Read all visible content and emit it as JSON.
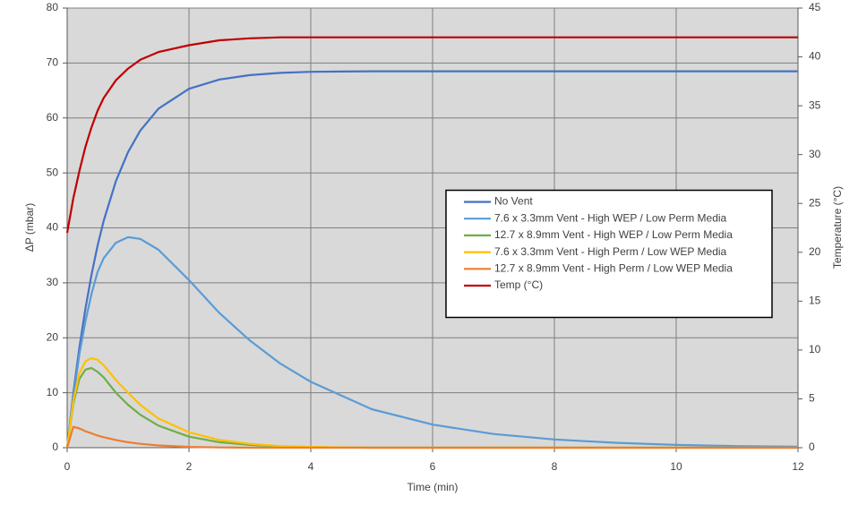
{
  "chart_data": {
    "type": "line",
    "x_label": "Time (min)",
    "y_label": "ΔP (mbar)",
    "y2_label": "Temperature (°C)",
    "x": [
      0,
      0.1,
      0.2,
      0.3,
      0.4,
      0.5,
      0.6,
      0.8,
      1,
      1.2,
      1.5,
      2,
      2.5,
      3,
      3.5,
      4,
      5,
      6,
      7,
      8,
      9,
      10,
      11,
      12
    ],
    "series": [
      {
        "name": "No Vent",
        "color": "#4472c4",
        "values": [
          0,
          9.8,
          18.2,
          25.3,
          31.5,
          36.8,
          41.3,
          48.5,
          53.8,
          57.7,
          61.7,
          65.3,
          67.0,
          67.8,
          68.2,
          68.4,
          68.5,
          68.5,
          68.5,
          68.5,
          68.5,
          68.5,
          68.5,
          68.5
        ]
      },
      {
        "name": "7.6 x 3.3mm Vent - High WEP / Low Perm Media",
        "color": "#5b9bd5",
        "values": [
          0,
          9,
          17,
          23,
          28,
          32,
          34.5,
          37.3,
          38.3,
          38,
          36,
          30.5,
          24.5,
          19.5,
          15.3,
          12,
          7,
          4.2,
          2.5,
          1.5,
          0.9,
          0.5,
          0.3,
          0.2
        ]
      },
      {
        "name": "12.7 x 8.9mm Vent - High WEP / Low Perm Media",
        "color": "#70ad47",
        "values": [
          0,
          8,
          12.5,
          14.2,
          14.5,
          13.8,
          12.8,
          10,
          7.8,
          6,
          4,
          2,
          1,
          0.5,
          0.25,
          0.1,
          0,
          0,
          0,
          0,
          0,
          0,
          0,
          0
        ]
      },
      {
        "name": "7.6 x 3.3mm Vent - High Perm / Low WEP Media",
        "color": "#ffc000",
        "values": [
          0,
          8.5,
          13.5,
          15.7,
          16.3,
          16,
          15,
          12.3,
          10,
          7.8,
          5.3,
          2.8,
          1.4,
          0.7,
          0.3,
          0.15,
          0,
          0,
          0,
          0,
          0,
          0,
          0,
          0
        ]
      },
      {
        "name": "12.7 x 8.9mm Vent - High Perm / Low WEP Media",
        "color": "#ed7d31",
        "values": [
          0,
          3.8,
          3.5,
          3,
          2.6,
          2.2,
          1.9,
          1.4,
          1,
          0.7,
          0.4,
          0.15,
          0.05,
          0,
          0,
          0,
          0,
          0,
          0,
          0,
          0,
          0,
          0,
          0
        ]
      },
      {
        "name": "Temp (°C)",
        "color": "#c00000",
        "axis": "y2",
        "values": [
          22,
          25.5,
          28.3,
          30.8,
          32.8,
          34.5,
          35.8,
          37.6,
          38.8,
          39.7,
          40.5,
          41.2,
          41.7,
          41.9,
          42,
          42,
          42,
          42,
          42,
          42,
          42,
          42,
          42,
          42
        ]
      }
    ],
    "xlim": [
      0,
      12
    ],
    "xticks": [
      0,
      2,
      4,
      6,
      8,
      10,
      12
    ],
    "ylim": [
      0,
      80
    ],
    "yticks": [
      0,
      10,
      20,
      30,
      40,
      50,
      60,
      70,
      80
    ],
    "y2lim": [
      0,
      45
    ],
    "y2ticks": [
      0,
      5,
      10,
      15,
      20,
      25,
      30,
      35,
      40,
      45
    ],
    "grid": true,
    "legend_position": "center-right"
  }
}
